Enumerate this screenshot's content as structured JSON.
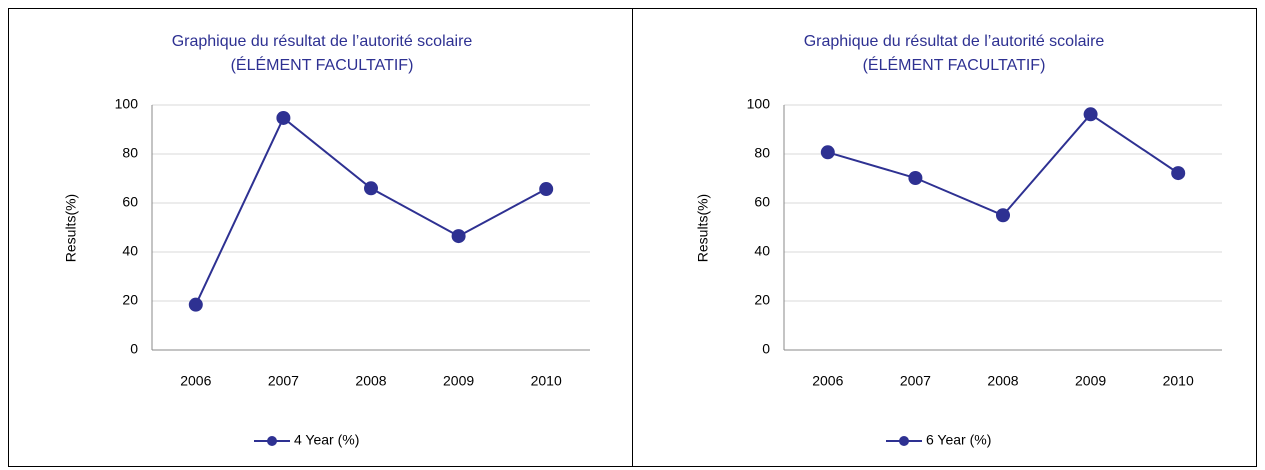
{
  "chart_data": [
    {
      "type": "line",
      "title": "Graphique du résultat de l’autorité scolaire",
      "subtitle": "(ÉLÉMENT FACULTATIF)",
      "y_label": "Results(%)",
      "categories": [
        "2006",
        "2007",
        "2008",
        "2009",
        "2010"
      ],
      "series": [
        {
          "name": "4 Year (%)",
          "color": "#2e3192",
          "values": [
            18.5,
            94.7,
            66,
            46.5,
            65.7
          ]
        }
      ],
      "ylim": [
        0,
        100
      ],
      "yticks": [
        0,
        20,
        40,
        60,
        80,
        100
      ],
      "grid": true
    },
    {
      "type": "line",
      "title": "Graphique du résultat de l’autorité scolaire",
      "subtitle": "(ÉLÉMENT FACULTATIF)",
      "y_label": "Results(%)",
      "categories": [
        "2006",
        "2007",
        "2008",
        "2009",
        "2010"
      ],
      "series": [
        {
          "name": "6 Year (%)",
          "color": "#2e3192",
          "values": [
            80.7,
            70.2,
            55,
            96.2,
            72.2
          ]
        }
      ],
      "ylim": [
        0,
        100
      ],
      "yticks": [
        0,
        20,
        40,
        60,
        80,
        100
      ],
      "grid": true
    }
  ]
}
